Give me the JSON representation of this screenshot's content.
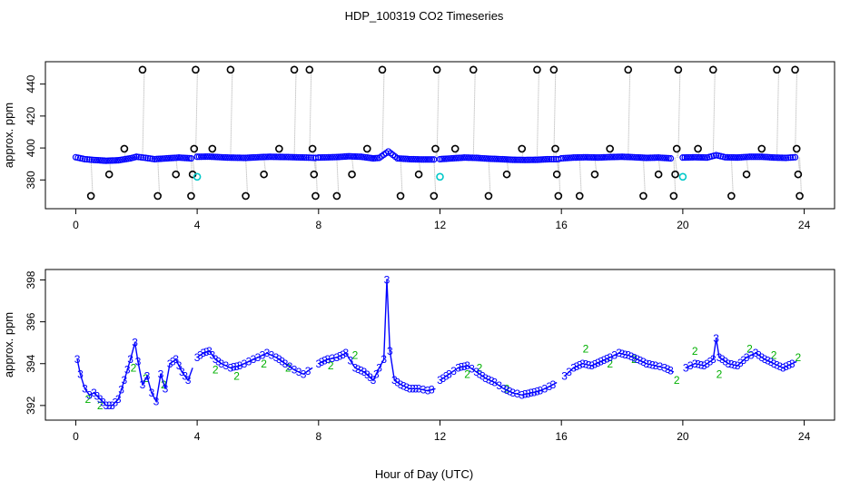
{
  "figure": {
    "title": "HDP_100319  CO2 Timeseries",
    "xlabel": "Hour of Day (UTC)"
  },
  "chart_data": [
    {
      "type": "scatter",
      "panel": "top",
      "title": "HDP_100319  CO2 Timeseries",
      "xlabel": "",
      "ylabel": "approx. ppm",
      "xlim": [
        -1,
        25
      ],
      "ylim": [
        362,
        454
      ],
      "xticks": [
        0,
        4,
        8,
        12,
        16,
        20,
        24
      ],
      "yticks": [
        380,
        400,
        420,
        440
      ],
      "colors": {
        "marker_black": "#000000",
        "marker_blue": "#0000ff",
        "marker_cyan": "#00c8c8",
        "connector": "#aaaaaa",
        "frame": "#000000"
      },
      "baseline_segments": [
        {
          "x": [
            0.0,
            0.3,
            0.6,
            1.0,
            1.4,
            1.8,
            2.0,
            2.3,
            2.6,
            3.0,
            3.4,
            3.8
          ],
          "y": [
            394.2,
            393.0,
            392.5,
            392.0,
            392.3,
            393.5,
            394.5,
            393.8,
            393.0,
            393.5,
            394.0,
            393.5
          ]
        },
        {
          "x": [
            4.0,
            4.4,
            5.0,
            5.6,
            6.0,
            6.4,
            7.0,
            7.6,
            7.9
          ],
          "y": [
            394.5,
            394.6,
            394.0,
            393.8,
            394.2,
            394.5,
            394.3,
            394.0,
            393.8
          ]
        },
        {
          "x": [
            8.0,
            8.6,
            9.0,
            9.4,
            9.8,
            10.0,
            10.3,
            10.6,
            11.0,
            11.4,
            11.8
          ],
          "y": [
            394.0,
            394.3,
            394.8,
            394.5,
            393.5,
            393.8,
            397.8,
            393.5,
            393.0,
            392.8,
            392.8
          ]
        },
        {
          "x": [
            12.0,
            12.4,
            12.8,
            13.2,
            13.6,
            14.0,
            14.4,
            14.8,
            15.2,
            15.6,
            15.9
          ],
          "y": [
            393.0,
            393.5,
            394.0,
            393.8,
            393.3,
            393.0,
            392.6,
            392.5,
            392.6,
            393.0,
            393.0
          ]
        },
        {
          "x": [
            16.0,
            16.4,
            16.8,
            17.2,
            17.6,
            18.0,
            18.4,
            18.8,
            19.2,
            19.6
          ],
          "y": [
            393.5,
            394.0,
            394.2,
            394.0,
            394.3,
            394.5,
            394.2,
            393.8,
            394.0,
            393.5
          ]
        },
        {
          "x": [
            20.0,
            20.4,
            20.8,
            21.1,
            21.4,
            21.8,
            22.2,
            22.6,
            23.0,
            23.4,
            23.7
          ],
          "y": [
            394.0,
            394.2,
            394.0,
            395.5,
            394.2,
            394.0,
            394.5,
            394.5,
            394.0,
            393.8,
            394.2
          ]
        }
      ],
      "calibration_points": [
        {
          "x": 0.5,
          "y": 370
        },
        {
          "x": 1.1,
          "y": 383.5
        },
        {
          "x": 1.6,
          "y": 399.5
        },
        {
          "x": 2.2,
          "y": 449
        },
        {
          "x": 2.7,
          "y": 370
        },
        {
          "x": 3.3,
          "y": 383.5
        },
        {
          "x": 3.8,
          "y": 370
        },
        {
          "x": 3.85,
          "y": 383.5
        },
        {
          "x": 3.9,
          "y": 399.5
        },
        {
          "x": 3.95,
          "y": 449
        },
        {
          "x": 4.5,
          "y": 399.5
        },
        {
          "x": 5.1,
          "y": 449
        },
        {
          "x": 5.6,
          "y": 370
        },
        {
          "x": 6.2,
          "y": 383.5
        },
        {
          "x": 6.7,
          "y": 399.5
        },
        {
          "x": 7.2,
          "y": 449
        },
        {
          "x": 7.7,
          "y": 449
        },
        {
          "x": 7.8,
          "y": 399.5
        },
        {
          "x": 7.85,
          "y": 383.5
        },
        {
          "x": 7.9,
          "y": 370
        },
        {
          "x": 8.6,
          "y": 370
        },
        {
          "x": 9.1,
          "y": 383.5
        },
        {
          "x": 9.6,
          "y": 399.5
        },
        {
          "x": 10.1,
          "y": 449
        },
        {
          "x": 10.7,
          "y": 370
        },
        {
          "x": 11.3,
          "y": 383.5
        },
        {
          "x": 11.8,
          "y": 370
        },
        {
          "x": 11.85,
          "y": 399.5
        },
        {
          "x": 11.9,
          "y": 449
        },
        {
          "x": 12.5,
          "y": 399.5
        },
        {
          "x": 13.1,
          "y": 449
        },
        {
          "x": 13.6,
          "y": 370
        },
        {
          "x": 14.2,
          "y": 383.5
        },
        {
          "x": 14.7,
          "y": 399.5
        },
        {
          "x": 15.2,
          "y": 449
        },
        {
          "x": 15.75,
          "y": 449
        },
        {
          "x": 15.8,
          "y": 399.5
        },
        {
          "x": 15.85,
          "y": 383.5
        },
        {
          "x": 15.9,
          "y": 370
        },
        {
          "x": 16.6,
          "y": 370
        },
        {
          "x": 17.1,
          "y": 383.5
        },
        {
          "x": 17.6,
          "y": 399.5
        },
        {
          "x": 18.2,
          "y": 449
        },
        {
          "x": 18.7,
          "y": 370
        },
        {
          "x": 19.2,
          "y": 383.5
        },
        {
          "x": 19.7,
          "y": 370
        },
        {
          "x": 19.75,
          "y": 383.5
        },
        {
          "x": 19.8,
          "y": 399.5
        },
        {
          "x": 19.85,
          "y": 449
        },
        {
          "x": 20.5,
          "y": 399.5
        },
        {
          "x": 21.0,
          "y": 449
        },
        {
          "x": 21.6,
          "y": 370
        },
        {
          "x": 22.1,
          "y": 383.5
        },
        {
          "x": 22.6,
          "y": 399.5
        },
        {
          "x": 23.1,
          "y": 449
        },
        {
          "x": 23.7,
          "y": 449
        },
        {
          "x": 23.75,
          "y": 399.5
        },
        {
          "x": 23.8,
          "y": 383.5
        },
        {
          "x": 23.85,
          "y": 370
        }
      ],
      "cyan_points": [
        {
          "x": 4.0,
          "y": 382
        },
        {
          "x": 12.0,
          "y": 382
        },
        {
          "x": 20.0,
          "y": 382
        }
      ]
    },
    {
      "type": "line",
      "panel": "bottom",
      "xlabel": "Hour of Day (UTC)",
      "ylabel": "approx. ppm",
      "xlim": [
        -1,
        25
      ],
      "ylim": [
        391.3,
        398.5
      ],
      "xticks": [
        0,
        4,
        8,
        12,
        16,
        20,
        24
      ],
      "yticks": [
        392,
        394,
        396,
        398
      ],
      "colors": {
        "series_3": "#0000ff",
        "series_2": "#00b000",
        "frame": "#000000"
      },
      "series": [
        {
          "name": "3",
          "symbol": "3",
          "color": "#0000ff",
          "segments": [
            {
              "x": [
                0.05,
                0.15,
                0.3,
                0.45,
                0.6,
                0.8,
                1.0,
                1.2,
                1.4,
                1.6,
                1.8,
                1.95,
                2.05,
                2.2,
                2.35,
                2.5,
                2.65,
                2.8,
                2.95,
                3.1,
                3.3,
                3.5,
                3.7,
                3.85
              ],
              "y": [
                394.2,
                393.5,
                392.8,
                392.5,
                392.6,
                392.3,
                392.0,
                392.0,
                392.3,
                393.2,
                394.2,
                395.0,
                394.1,
                393.0,
                393.4,
                392.6,
                392.2,
                393.5,
                392.8,
                394.0,
                394.2,
                393.6,
                393.2,
                393.8
              ]
            },
            {
              "x": [
                4.0,
                4.2,
                4.4,
                4.6,
                4.8,
                5.1,
                5.4,
                5.7,
                6.0,
                6.3,
                6.6,
                6.9,
                7.2,
                7.5,
                7.8
              ],
              "y": [
                394.3,
                394.5,
                394.6,
                394.2,
                394.0,
                393.8,
                393.9,
                394.1,
                394.3,
                394.5,
                394.3,
                394.0,
                393.7,
                393.5,
                393.8
              ]
            },
            {
              "x": [
                8.0,
                8.3,
                8.6,
                8.9,
                9.2,
                9.5,
                9.8,
                10.0,
                10.15,
                10.25,
                10.35,
                10.5,
                10.7,
                11.0,
                11.3,
                11.6,
                11.85
              ],
              "y": [
                394.0,
                394.2,
                394.3,
                394.5,
                393.8,
                393.6,
                393.2,
                393.8,
                394.2,
                398.0,
                394.6,
                393.2,
                393.0,
                392.8,
                392.8,
                392.7,
                392.8
              ]
            },
            {
              "x": [
                12.0,
                12.3,
                12.6,
                12.9,
                13.2,
                13.5,
                13.8,
                14.1,
                14.4,
                14.7,
                15.0,
                15.3,
                15.6,
                15.85
              ],
              "y": [
                393.2,
                393.5,
                393.8,
                393.9,
                393.6,
                393.3,
                393.1,
                392.8,
                392.6,
                392.5,
                392.6,
                392.7,
                392.9,
                393.1
              ]
            },
            {
              "x": [
                16.1,
                16.4,
                16.7,
                17.0,
                17.3,
                17.6,
                17.9,
                18.2,
                18.5,
                18.8,
                19.1,
                19.4,
                19.7
              ],
              "y": [
                393.4,
                393.8,
                394.0,
                393.9,
                394.1,
                394.3,
                394.5,
                394.4,
                394.2,
                394.0,
                393.9,
                393.8,
                393.6
              ]
            },
            {
              "x": [
                20.1,
                20.4,
                20.7,
                21.0,
                21.1,
                21.2,
                21.5,
                21.8,
                22.1,
                22.4,
                22.7,
                23.0,
                23.3,
                23.6,
                23.75
              ],
              "y": [
                393.8,
                394.0,
                393.9,
                394.2,
                395.2,
                394.3,
                394.0,
                393.9,
                394.3,
                394.5,
                394.2,
                394.0,
                393.8,
                394.0,
                394.1
              ]
            }
          ]
        },
        {
          "name": "2",
          "symbol": "2",
          "color": "#00b000",
          "points": [
            {
              "x": 0.4,
              "y": 392.3
            },
            {
              "x": 0.8,
              "y": 392.0
            },
            {
              "x": 1.9,
              "y": 393.8
            },
            {
              "x": 2.3,
              "y": 393.3
            },
            {
              "x": 2.9,
              "y": 393.0
            },
            {
              "x": 4.6,
              "y": 393.7
            },
            {
              "x": 5.3,
              "y": 393.4
            },
            {
              "x": 6.2,
              "y": 394.0
            },
            {
              "x": 7.0,
              "y": 393.8
            },
            {
              "x": 8.4,
              "y": 393.9
            },
            {
              "x": 9.2,
              "y": 394.4
            },
            {
              "x": 12.9,
              "y": 393.5
            },
            {
              "x": 13.3,
              "y": 393.8
            },
            {
              "x": 14.2,
              "y": 392.8
            },
            {
              "x": 16.8,
              "y": 394.7
            },
            {
              "x": 17.6,
              "y": 394.0
            },
            {
              "x": 18.4,
              "y": 394.2
            },
            {
              "x": 19.8,
              "y": 393.2
            },
            {
              "x": 20.4,
              "y": 394.6
            },
            {
              "x": 21.2,
              "y": 393.5
            },
            {
              "x": 22.2,
              "y": 394.7
            },
            {
              "x": 23.0,
              "y": 394.4
            },
            {
              "x": 23.8,
              "y": 394.3
            }
          ]
        }
      ]
    }
  ]
}
